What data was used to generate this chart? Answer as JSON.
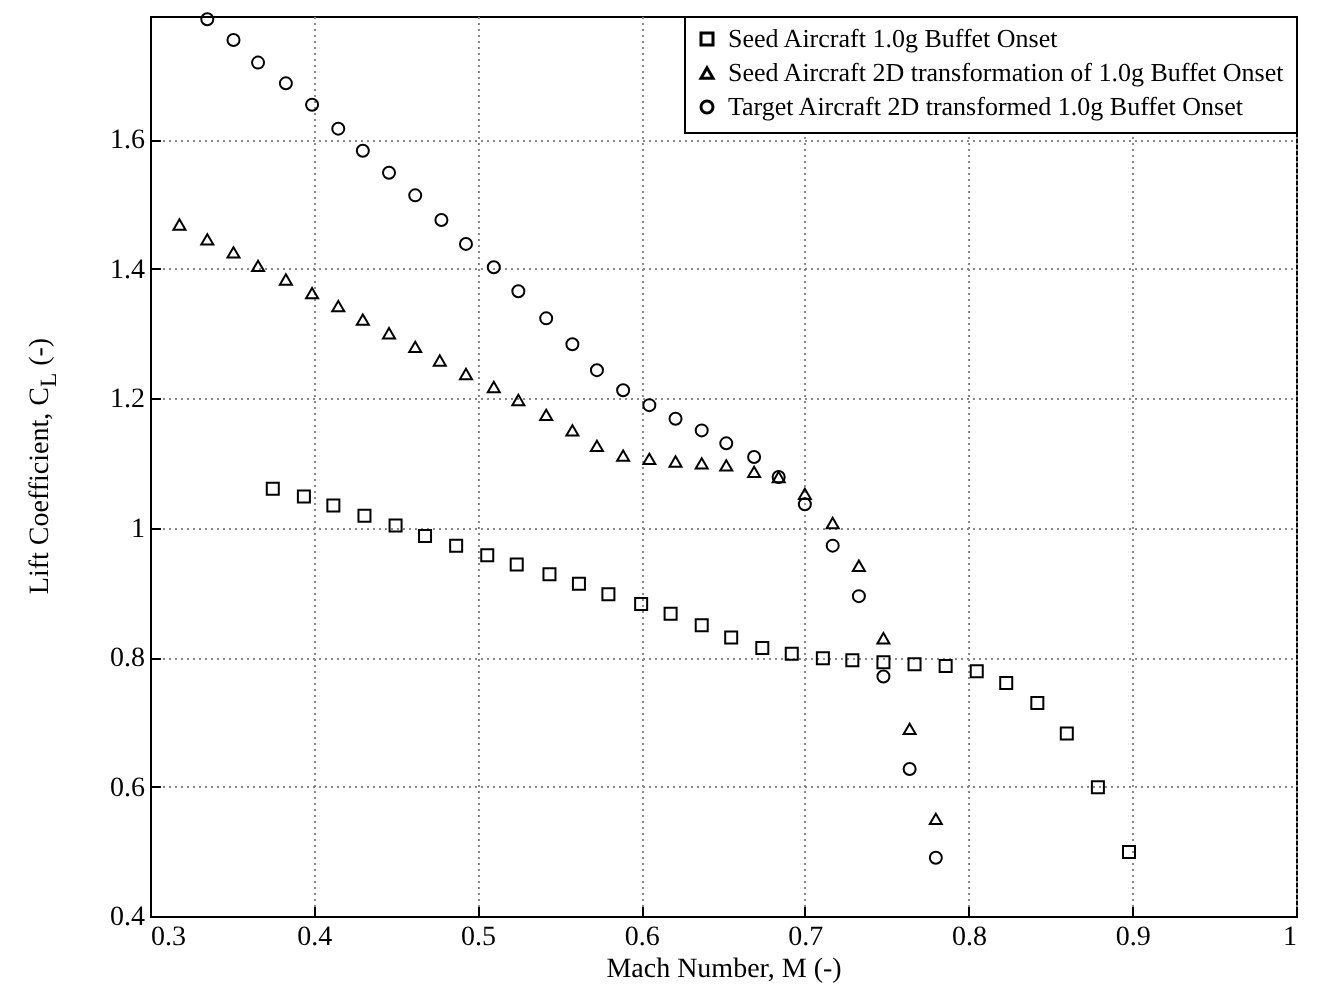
{
  "chart_data": {
    "type": "scatter",
    "xlabel": "Mach Number, M (-)",
    "ylabel": "Lift Coefficient, C$_{L}$ (-)",
    "xlim": [
      0.3,
      1
    ],
    "xticks": [
      0.3,
      0.4,
      0.5,
      0.6,
      0.7,
      0.8,
      0.9,
      1
    ],
    "ylim": [
      0.4,
      1.79
    ],
    "yticks": [
      0.4,
      0.6,
      0.8,
      1,
      1.2,
      1.4,
      1.6
    ],
    "grid": true,
    "legend": "top right",
    "series": [
      {
        "name": "Seed Aircraft 1.0g Buffet Onset",
        "color": "#000000",
        "marker": "square",
        "x": [
          0.375,
          0.394,
          0.412,
          0.431,
          0.45,
          0.468,
          0.487,
          0.506,
          0.524,
          0.544,
          0.562,
          0.58,
          0.6,
          0.618,
          0.637,
          0.655,
          0.674,
          0.692,
          0.711,
          0.729,
          0.748,
          0.767,
          0.786,
          0.805,
          0.823,
          0.842,
          0.86,
          0.879,
          0.898
        ],
        "values": [
          1.06,
          1.048,
          1.034,
          1.018,
          1.003,
          0.987,
          0.972,
          0.957,
          0.943,
          0.928,
          0.913,
          0.897,
          0.882,
          0.867,
          0.849,
          0.83,
          0.814,
          0.805,
          0.798,
          0.795,
          0.792,
          0.789,
          0.786,
          0.778,
          0.76,
          0.729,
          0.682,
          0.599,
          0.499
        ]
      },
      {
        "name": "Seed Aircraft 2D transformation of 1.0g Buffet Onset",
        "color": "#000000",
        "marker": "triangle",
        "x": [
          0.318,
          0.335,
          0.351,
          0.366,
          0.383,
          0.399,
          0.415,
          0.43,
          0.446,
          0.462,
          0.477,
          0.493,
          0.51,
          0.525,
          0.542,
          0.558,
          0.573,
          0.589,
          0.605,
          0.621,
          0.637,
          0.652,
          0.669,
          0.684,
          0.7,
          0.717,
          0.733,
          0.748,
          0.764,
          0.78
        ],
        "values": [
          1.468,
          1.445,
          1.425,
          1.404,
          1.383,
          1.362,
          1.342,
          1.321,
          1.3,
          1.279,
          1.258,
          1.237,
          1.217,
          1.197,
          1.174,
          1.15,
          1.126,
          1.111,
          1.106,
          1.102,
          1.099,
          1.096,
          1.086,
          1.078,
          1.052,
          1.007,
          0.941,
          0.829,
          0.689,
          0.55
        ]
      },
      {
        "name": "Target Aircraft 2D transformed 1.0g Buffet Onset",
        "color": "#000000",
        "marker": "circle",
        "x": [
          0.335,
          0.351,
          0.366,
          0.383,
          0.399,
          0.415,
          0.43,
          0.446,
          0.462,
          0.478,
          0.493,
          0.51,
          0.525,
          0.542,
          0.558,
          0.573,
          0.589,
          0.605,
          0.621,
          0.637,
          0.652,
          0.669,
          0.684,
          0.7,
          0.717,
          0.733,
          0.748,
          0.764,
          0.78
        ],
        "values": [
          1.785,
          1.753,
          1.718,
          1.686,
          1.653,
          1.616,
          1.582,
          1.548,
          1.513,
          1.475,
          1.438,
          1.402,
          1.365,
          1.323,
          1.283,
          1.243,
          1.212,
          1.189,
          1.168,
          1.15,
          1.13,
          1.109,
          1.078,
          1.036,
          0.972,
          0.894,
          0.77,
          0.627,
          0.49
        ]
      }
    ]
  }
}
